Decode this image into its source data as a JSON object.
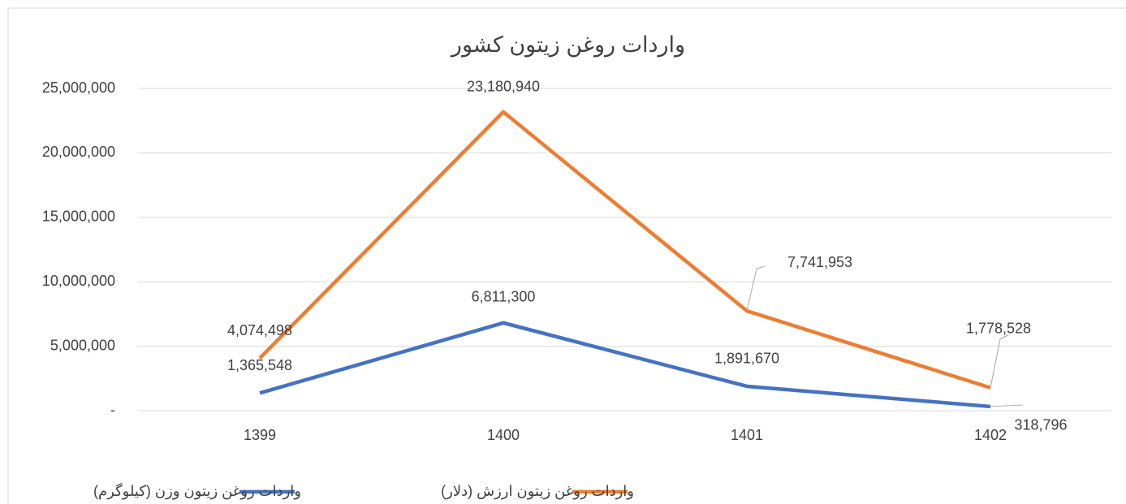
{
  "chart_data": {
    "type": "line",
    "title": "واردات روغن زیتون کشور",
    "categories": [
      "1399",
      "1400",
      "1401",
      "1402"
    ],
    "series": [
      {
        "name": "واردات روغن زیتون وزن (کیلوگرم)",
        "color": "#4472c4",
        "values": [
          1365548,
          6811300,
          1891670,
          318796
        ],
        "value_labels": [
          "1,365,548",
          "6,811,300",
          "1,891,670",
          "318,796"
        ]
      },
      {
        "name": "واردات روغن زیتون ارزش (دلار)",
        "color": "#ed7d31",
        "values": [
          4074498,
          23180940,
          7741953,
          1778528
        ],
        "value_labels": [
          "4,074,498",
          "23,180,940",
          "7,741,953",
          "1,778,528"
        ]
      }
    ],
    "ylim": [
      0,
      25000000
    ],
    "yticks": [
      {
        "value": 0,
        "label": "-"
      },
      {
        "value": 5000000,
        "label": "5,000,000"
      },
      {
        "value": 10000000,
        "label": "10,000,000"
      },
      {
        "value": 15000000,
        "label": "15,000,000"
      },
      {
        "value": 20000000,
        "label": "20,000,000"
      },
      {
        "value": 25000000,
        "label": "25,000,000"
      }
    ],
    "grid": true,
    "legend": "bottom"
  }
}
